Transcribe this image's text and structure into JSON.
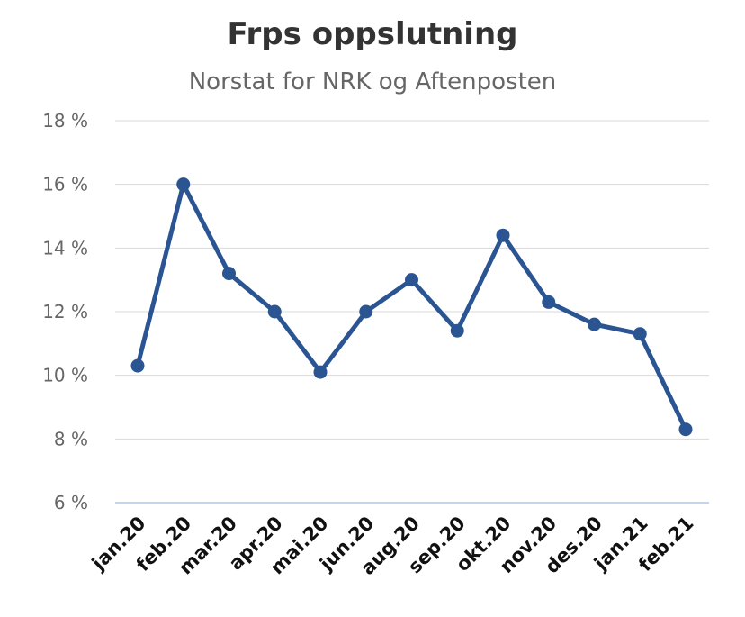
{
  "chart_data": {
    "type": "line",
    "title": "Frps oppslutning",
    "subtitle": "Norstat for NRK og Aftenposten",
    "xlabel": "",
    "ylabel": "",
    "categories": [
      "jan.20",
      "feb.20",
      "mar.20",
      "apr.20",
      "mai.20",
      "jun.20",
      "aug.20",
      "sep.20",
      "okt.20",
      "nov.20",
      "des.20",
      "jan.21",
      "feb.21"
    ],
    "series": [
      {
        "values": [
          10.3,
          16.0,
          13.2,
          12.0,
          10.1,
          12.0,
          13.0,
          11.4,
          14.4,
          12.3,
          11.6,
          11.3,
          8.3
        ]
      }
    ],
    "ylim": [
      6,
      18
    ],
    "yticks": [
      6,
      8,
      10,
      12,
      14,
      16,
      18
    ],
    "ytick_labels": [
      "6 %",
      "8 %",
      "10 %",
      "12 %",
      "14 %",
      "16 %",
      "18 %"
    ],
    "grid": true,
    "legend": "none",
    "colors": {
      "line": "#2A5592",
      "grid": "#D9D9D9",
      "baseline": "#B4C7E7"
    }
  }
}
